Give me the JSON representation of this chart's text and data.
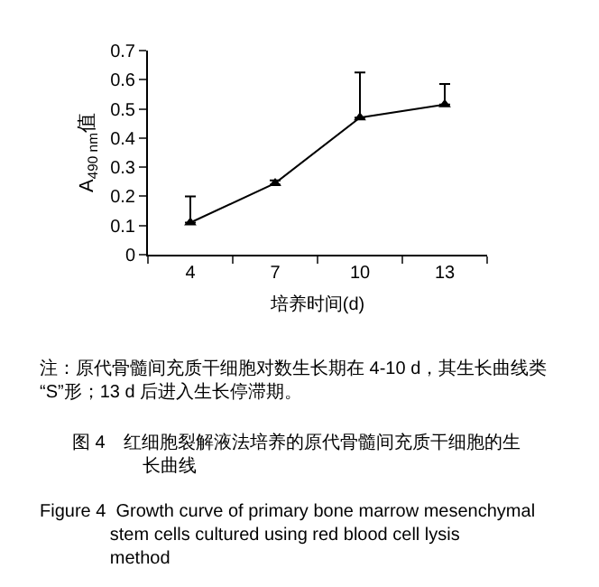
{
  "chart_data": {
    "type": "line",
    "categories": [
      "4",
      "7",
      "10",
      "13"
    ],
    "values": [
      0.11,
      0.245,
      0.47,
      0.515
    ],
    "errors": [
      [
        0.11,
        0.2
      ],
      [
        0.24,
        0.255
      ],
      [
        0.47,
        0.625
      ],
      [
        0.515,
        0.585
      ]
    ],
    "color": "#000000",
    "marker": "triangle",
    "ylim": [
      0,
      0.7
    ],
    "yticks": [
      0,
      0.1,
      0.2,
      0.3,
      0.4,
      0.5,
      0.6,
      0.7
    ],
    "xlabel": "培养时间(d)",
    "ylabel": "A$_{490 nm}$值",
    "legend": false,
    "annotations": [
      "注：原代骨髓间充质干细胞对数生长期在 4-10 d，其生长曲线类“S”形；13 d 后进入生长停滞期。",
      "图 4　红细胞裂解液法培养的原代骨髓间充质干细胞的生长曲线",
      "Figure 4  Growth curve of primary bone marrow mesenchymal stem cells cultured using red blood cell lysis method"
    ]
  }
}
